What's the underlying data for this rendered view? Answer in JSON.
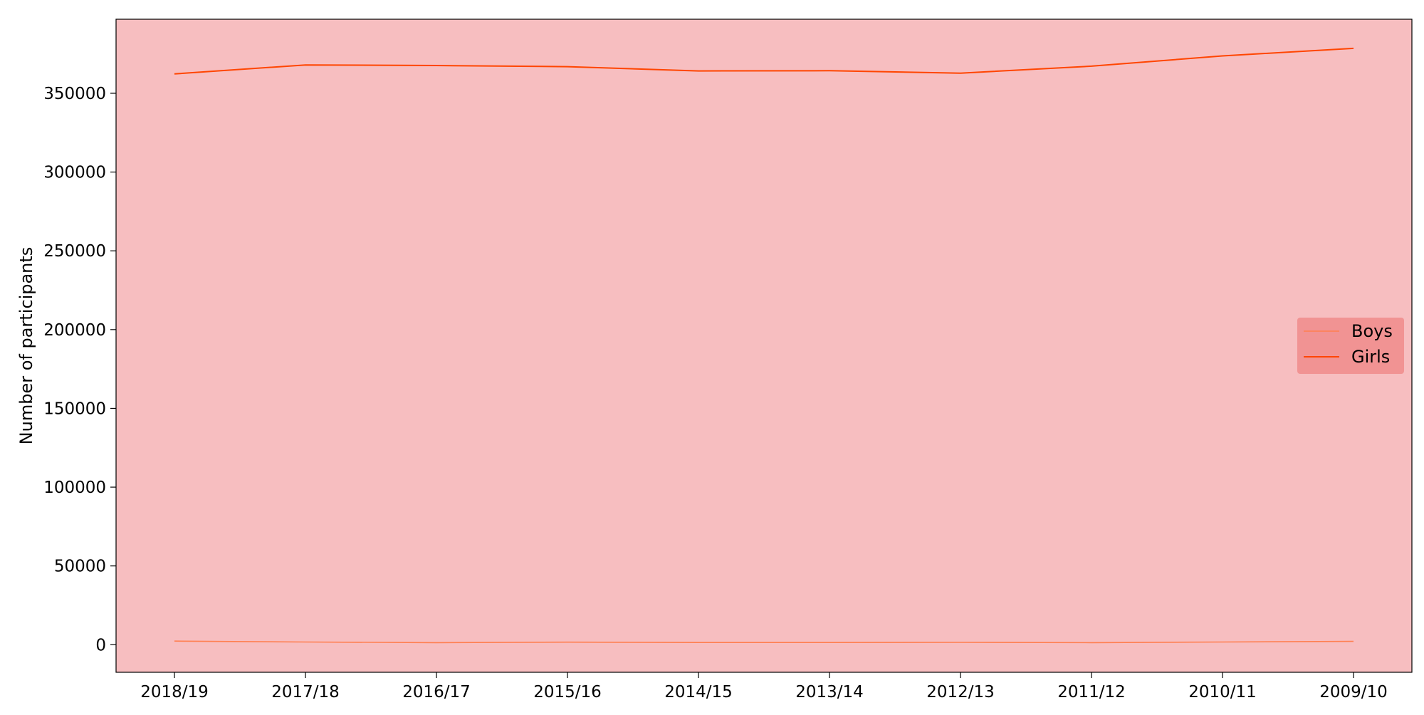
{
  "chart_data": {
    "type": "line",
    "title": "",
    "xlabel": "",
    "ylabel": "Number of participants",
    "categories": [
      "2018/19",
      "2017/18",
      "2016/17",
      "2015/16",
      "2014/15",
      "2013/14",
      "2012/13",
      "2011/12",
      "2010/11",
      "2009/10"
    ],
    "series": [
      {
        "name": "Boys",
        "color": "#ff7f50",
        "values": [
          2300,
          1700,
          1300,
          1600,
          1400,
          1400,
          1500,
          1300,
          1700,
          2100
        ]
      },
      {
        "name": "Girls",
        "color": "#ff4500",
        "values": [
          362300,
          368000,
          367600,
          366900,
          364200,
          364300,
          362800,
          367200,
          373700,
          378500
        ]
      }
    ],
    "ylim": [
      -17500,
      397000
    ],
    "yticks": [
      0,
      50000,
      100000,
      150000,
      200000,
      250000,
      300000,
      350000
    ],
    "grid": false,
    "legend_position": "center-right",
    "plot_background": "#f7bec0",
    "legend_background": "#f09090"
  }
}
